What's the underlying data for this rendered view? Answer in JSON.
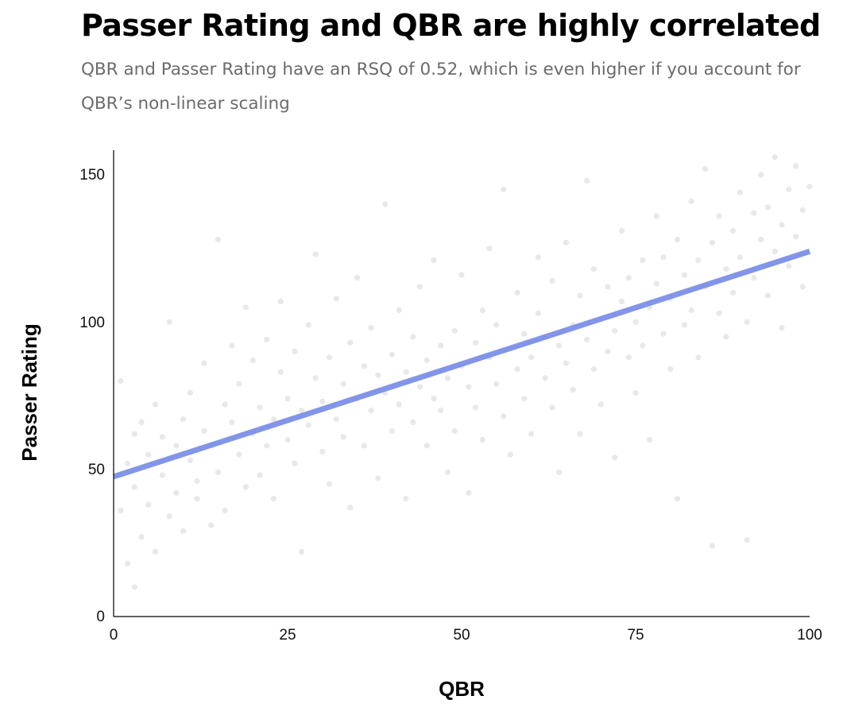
{
  "header": {
    "title": "Passer Rating and QBR are highly correlated",
    "subtitle": "QBR and Passer Rating have an RSQ of 0.52, which is even higher if you account for QBR’s non-linear scaling"
  },
  "chart_data": {
    "type": "scatter",
    "title": "Passer Rating and QBR are highly correlated",
    "subtitle": "QBR and Passer Rating have an RSQ of 0.52, which is even higher if you account for QBR’s non-linear scaling",
    "xlabel": "QBR",
    "ylabel": "Passer Rating",
    "xlim": [
      0,
      100
    ],
    "ylim": [
      0,
      158
    ],
    "x_ticks": [
      0,
      25,
      50,
      75,
      100
    ],
    "y_ticks": [
      0,
      50,
      100,
      150
    ],
    "grid": false,
    "legend": "none",
    "series": [
      {
        "type": "scatter",
        "color": "#b3b3b3",
        "opacity": 0.3,
        "points": [
          [
            1,
            36
          ],
          [
            1,
            80
          ],
          [
            2,
            18
          ],
          [
            2,
            52
          ],
          [
            3,
            10
          ],
          [
            3,
            44
          ],
          [
            3,
            62
          ],
          [
            4,
            27
          ],
          [
            4,
            66
          ],
          [
            5,
            38
          ],
          [
            5,
            55
          ],
          [
            6,
            22
          ],
          [
            6,
            72
          ],
          [
            7,
            48
          ],
          [
            7,
            61
          ],
          [
            8,
            34
          ],
          [
            8,
            100
          ],
          [
            9,
            42
          ],
          [
            9,
            58
          ],
          [
            10,
            29
          ],
          [
            10,
            67
          ],
          [
            11,
            53
          ],
          [
            11,
            76
          ],
          [
            12,
            46
          ],
          [
            12,
            40
          ],
          [
            13,
            63
          ],
          [
            13,
            86
          ],
          [
            14,
            31
          ],
          [
            14,
            58
          ],
          [
            15,
            128
          ],
          [
            15,
            49
          ],
          [
            16,
            72
          ],
          [
            16,
            36
          ],
          [
            17,
            66
          ],
          [
            17,
            92
          ],
          [
            18,
            55
          ],
          [
            18,
            79
          ],
          [
            19,
            44
          ],
          [
            19,
            105
          ],
          [
            20,
            62
          ],
          [
            20,
            87
          ],
          [
            21,
            71
          ],
          [
            21,
            48
          ],
          [
            22,
            58
          ],
          [
            22,
            94
          ],
          [
            23,
            67
          ],
          [
            23,
            40
          ],
          [
            24,
            83
          ],
          [
            24,
            107
          ],
          [
            25,
            60
          ],
          [
            25,
            74
          ],
          [
            26,
            52
          ],
          [
            26,
            90
          ],
          [
            27,
            70
          ],
          [
            27,
            22
          ],
          [
            28,
            65
          ],
          [
            28,
            99
          ],
          [
            29,
            81
          ],
          [
            29,
            123
          ],
          [
            30,
            56
          ],
          [
            30,
            73
          ],
          [
            31,
            88
          ],
          [
            31,
            45
          ],
          [
            32,
            67
          ],
          [
            32,
            108
          ],
          [
            33,
            79
          ],
          [
            33,
            61
          ],
          [
            34,
            93
          ],
          [
            34,
            37
          ],
          [
            35,
            74
          ],
          [
            35,
            115
          ],
          [
            36,
            85
          ],
          [
            36,
            58
          ],
          [
            37,
            70
          ],
          [
            37,
            98
          ],
          [
            38,
            82
          ],
          [
            38,
            47
          ],
          [
            39,
            76
          ],
          [
            39,
            140
          ],
          [
            40,
            89
          ],
          [
            40,
            63
          ],
          [
            41,
            72
          ],
          [
            41,
            104
          ],
          [
            42,
            83
          ],
          [
            42,
            40
          ],
          [
            43,
            95
          ],
          [
            43,
            66
          ],
          [
            44,
            78
          ],
          [
            44,
            112
          ],
          [
            45,
            87
          ],
          [
            45,
            58
          ],
          [
            46,
            74
          ],
          [
            46,
            121
          ],
          [
            47,
            92
          ],
          [
            47,
            70
          ],
          [
            48,
            81
          ],
          [
            48,
            49
          ],
          [
            49,
            97
          ],
          [
            49,
            63
          ],
          [
            50,
            85
          ],
          [
            50,
            116
          ],
          [
            51,
            78
          ],
          [
            51,
            42
          ],
          [
            52,
            93
          ],
          [
            52,
            71
          ],
          [
            53,
            104
          ],
          [
            53,
            60
          ],
          [
            54,
            88
          ],
          [
            54,
            125
          ],
          [
            55,
            79
          ],
          [
            55,
            99
          ],
          [
            56,
            68
          ],
          [
            56,
            145
          ],
          [
            57,
            91
          ],
          [
            57,
            55
          ],
          [
            58,
            84
          ],
          [
            58,
            110
          ],
          [
            59,
            96
          ],
          [
            59,
            74
          ],
          [
            60,
            88
          ],
          [
            60,
            62
          ],
          [
            61,
            103
          ],
          [
            61,
            122
          ],
          [
            62,
            81
          ],
          [
            62,
            95
          ],
          [
            63,
            71
          ],
          [
            63,
            114
          ],
          [
            64,
            92
          ],
          [
            64,
            49
          ],
          [
            65,
            86
          ],
          [
            65,
            127
          ],
          [
            66,
            99
          ],
          [
            66,
            77
          ],
          [
            67,
            109
          ],
          [
            67,
            62
          ],
          [
            68,
            94
          ],
          [
            68,
            148
          ],
          [
            69,
            84
          ],
          [
            69,
            118
          ],
          [
            70,
            101
          ],
          [
            70,
            72
          ],
          [
            71,
            112
          ],
          [
            71,
            90
          ],
          [
            72,
            97
          ],
          [
            72,
            54
          ],
          [
            73,
            107
          ],
          [
            73,
            131
          ],
          [
            74,
            88
          ],
          [
            74,
            115
          ],
          [
            75,
            100
          ],
          [
            75,
            76
          ],
          [
            76,
            121
          ],
          [
            76,
            92
          ],
          [
            77,
            105
          ],
          [
            77,
            60
          ],
          [
            78,
            113
          ],
          [
            78,
            136
          ],
          [
            79,
            96
          ],
          [
            79,
            122
          ],
          [
            80,
            108
          ],
          [
            80,
            84
          ],
          [
            81,
            128
          ],
          [
            81,
            40
          ],
          [
            82,
            116
          ],
          [
            82,
            99
          ],
          [
            83,
            104
          ],
          [
            83,
            141
          ],
          [
            84,
            121
          ],
          [
            84,
            88
          ],
          [
            85,
            112
          ],
          [
            85,
            152
          ],
          [
            86,
            127
          ],
          [
            86,
            24
          ],
          [
            87,
            103
          ],
          [
            87,
            136
          ],
          [
            88,
            118
          ],
          [
            88,
            95
          ],
          [
            89,
            131
          ],
          [
            89,
            110
          ],
          [
            90,
            144
          ],
          [
            90,
            122
          ],
          [
            91,
            100
          ],
          [
            91,
            26
          ],
          [
            92,
            137
          ],
          [
            92,
            115
          ],
          [
            93,
            128
          ],
          [
            93,
            150
          ],
          [
            94,
            109
          ],
          [
            94,
            139
          ],
          [
            95,
            124
          ],
          [
            95,
            156
          ],
          [
            96,
            133
          ],
          [
            96,
            98
          ],
          [
            97,
            145
          ],
          [
            97,
            119
          ],
          [
            98,
            129
          ],
          [
            98,
            153
          ],
          [
            99,
            138
          ],
          [
            99,
            112
          ],
          [
            100,
            146
          ]
        ]
      },
      {
        "type": "line",
        "name": "",
        "color": "#7b8fe8",
        "x": [
          0,
          100
        ],
        "y": [
          47.5,
          124
        ]
      }
    ]
  },
  "axes": {
    "x_tick_labels": [
      "0",
      "25",
      "50",
      "75",
      "100"
    ],
    "y_tick_labels": [
      "0",
      "50",
      "100",
      "150"
    ],
    "xlabel": "QBR",
    "ylabel": "Passer Rating"
  }
}
